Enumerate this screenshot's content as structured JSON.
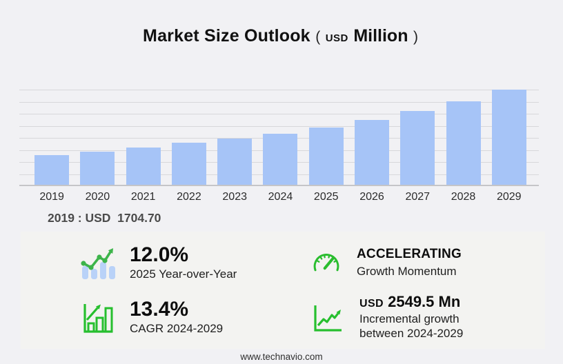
{
  "title": {
    "main": "Market Size Outlook",
    "open_paren": "(",
    "unit_small": "USD",
    "unit_large": "Million",
    "close_paren": ")"
  },
  "chart_data": {
    "type": "bar",
    "title": "Market Size Outlook (USD Million)",
    "unit": "USD Million",
    "categories": [
      "2019",
      "2020",
      "2021",
      "2022",
      "2023",
      "2024",
      "2025",
      "2026",
      "2027",
      "2028",
      "2029"
    ],
    "values": [
      1704.7,
      1900,
      2130,
      2400,
      2640,
      2913,
      3262,
      3715,
      4215,
      4780,
      5462
    ],
    "xlabel": "",
    "ylabel": "",
    "ylim": [
      0,
      6126
    ],
    "grid": true,
    "gridline_count": 8,
    "legend": false,
    "bar_color": "#a6c4f7",
    "base_year_note": "2019 : USD  1704.70"
  },
  "annotation": {
    "text": "2019 : USD  1704.70"
  },
  "stats": [
    {
      "name": "yoy-growth",
      "icon": "bar-line-growth-icon",
      "value": "12.0%",
      "label": "2025 Year-over-Year"
    },
    {
      "name": "growth-momentum",
      "icon": "gauge-icon",
      "value": "ACCELERATING",
      "label": "Growth Momentum"
    },
    {
      "name": "cagr",
      "icon": "bar-chart-arrow-icon",
      "value": "13.4%",
      "label": "CAGR 2024-2029"
    },
    {
      "name": "incremental-growth",
      "icon": "axes-zigzag-arrow-icon",
      "value_prefix": "USD",
      "value": "2549.5 Mn",
      "label_line1": "Incremental growth",
      "label_line2": "between 2024-2029"
    }
  ],
  "footer": {
    "url": "www.technavio.com"
  },
  "colors": {
    "background": "#f1f1f4",
    "panel": "#f3f3f1",
    "bar": "#a6c4f7",
    "gridline": "#d7d7da",
    "axis": "#c5c5c8",
    "icon_green_bright": "#26bf2e",
    "icon_green_soft": "#3cb44a",
    "icon_bar_blue": "#b9d2f8"
  }
}
